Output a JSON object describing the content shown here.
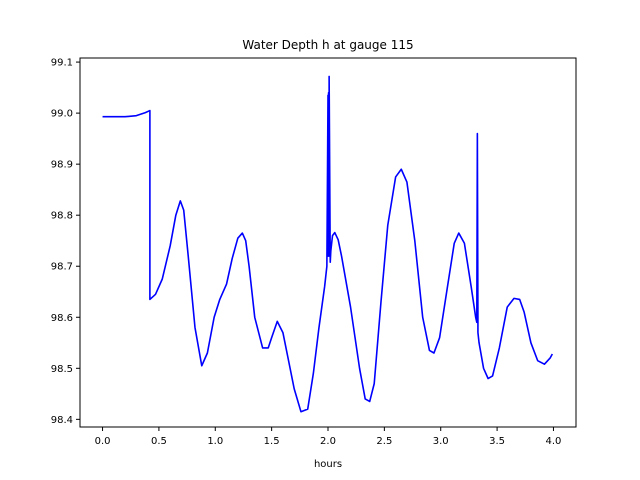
{
  "chart_data": {
    "type": "line",
    "title": "Water Depth h at gauge 115",
    "xlabel": "hours",
    "ylabel": "",
    "xlim": [
      -0.2,
      4.2
    ],
    "ylim": [
      98.385,
      99.108
    ],
    "xticks": [
      0.0,
      0.5,
      1.0,
      1.5,
      2.0,
      2.5,
      3.0,
      3.5,
      4.0
    ],
    "xtick_labels": [
      "0.0",
      "0.5",
      "1.0",
      "1.5",
      "2.0",
      "2.5",
      "3.0",
      "3.5",
      "4.0"
    ],
    "yticks": [
      98.4,
      98.5,
      98.6,
      98.7,
      98.8,
      98.9,
      99.0,
      99.1
    ],
    "ytick_labels": [
      "98.4",
      "98.5",
      "98.6",
      "98.7",
      "98.8",
      "98.9",
      "99.0",
      "99.1"
    ],
    "grid": false,
    "line_color": "#0000ff",
    "series": [
      {
        "name": "",
        "x": [
          0.0,
          0.1,
          0.2,
          0.3,
          0.38,
          0.42,
          0.42,
          0.47,
          0.53,
          0.6,
          0.65,
          0.69,
          0.72,
          0.76,
          0.82,
          0.88,
          0.93,
          0.99,
          1.04,
          1.1,
          1.15,
          1.2,
          1.24,
          1.27,
          1.3,
          1.35,
          1.42,
          1.47,
          1.5,
          1.55,
          1.6,
          1.65,
          1.7,
          1.76,
          1.82,
          1.87,
          1.92,
          1.97,
          1.99,
          2.0,
          2.0,
          2.005,
          2.01,
          2.01,
          2.02,
          2.025,
          2.03,
          2.04,
          2.06,
          2.09,
          2.12,
          2.2,
          2.28,
          2.33,
          2.37,
          2.41,
          2.47,
          2.53,
          2.6,
          2.65,
          2.7,
          2.77,
          2.84,
          2.9,
          2.94,
          2.99,
          3.06,
          3.12,
          3.16,
          3.21,
          3.27,
          3.31,
          3.32,
          3.325,
          3.33,
          3.33,
          3.34,
          3.38,
          3.42,
          3.46,
          3.52,
          3.59,
          3.65,
          3.7,
          3.74,
          3.8,
          3.86,
          3.92,
          3.97,
          3.99
        ],
        "values": [
          98.993,
          98.993,
          98.993,
          98.995,
          99.001,
          99.005,
          98.635,
          98.645,
          98.675,
          98.74,
          98.8,
          98.828,
          98.81,
          98.72,
          98.58,
          98.505,
          98.53,
          98.6,
          98.635,
          98.665,
          98.715,
          98.755,
          98.765,
          98.75,
          98.7,
          98.6,
          98.54,
          98.54,
          98.56,
          98.592,
          98.57,
          98.515,
          98.46,
          98.415,
          98.42,
          98.49,
          98.58,
          98.66,
          98.7,
          99.035,
          98.72,
          99.04,
          98.72,
          99.072,
          98.708,
          98.73,
          98.74,
          98.76,
          98.766,
          98.752,
          98.72,
          98.62,
          98.5,
          98.44,
          98.435,
          98.47,
          98.63,
          98.78,
          98.875,
          98.89,
          98.865,
          98.75,
          98.6,
          98.535,
          98.53,
          98.56,
          98.66,
          98.745,
          98.765,
          98.745,
          98.66,
          98.6,
          98.59,
          98.96,
          98.6,
          98.57,
          98.55,
          98.5,
          98.48,
          98.485,
          98.54,
          98.62,
          98.637,
          98.635,
          98.61,
          98.55,
          98.515,
          98.508,
          98.52,
          98.528
        ]
      }
    ]
  }
}
